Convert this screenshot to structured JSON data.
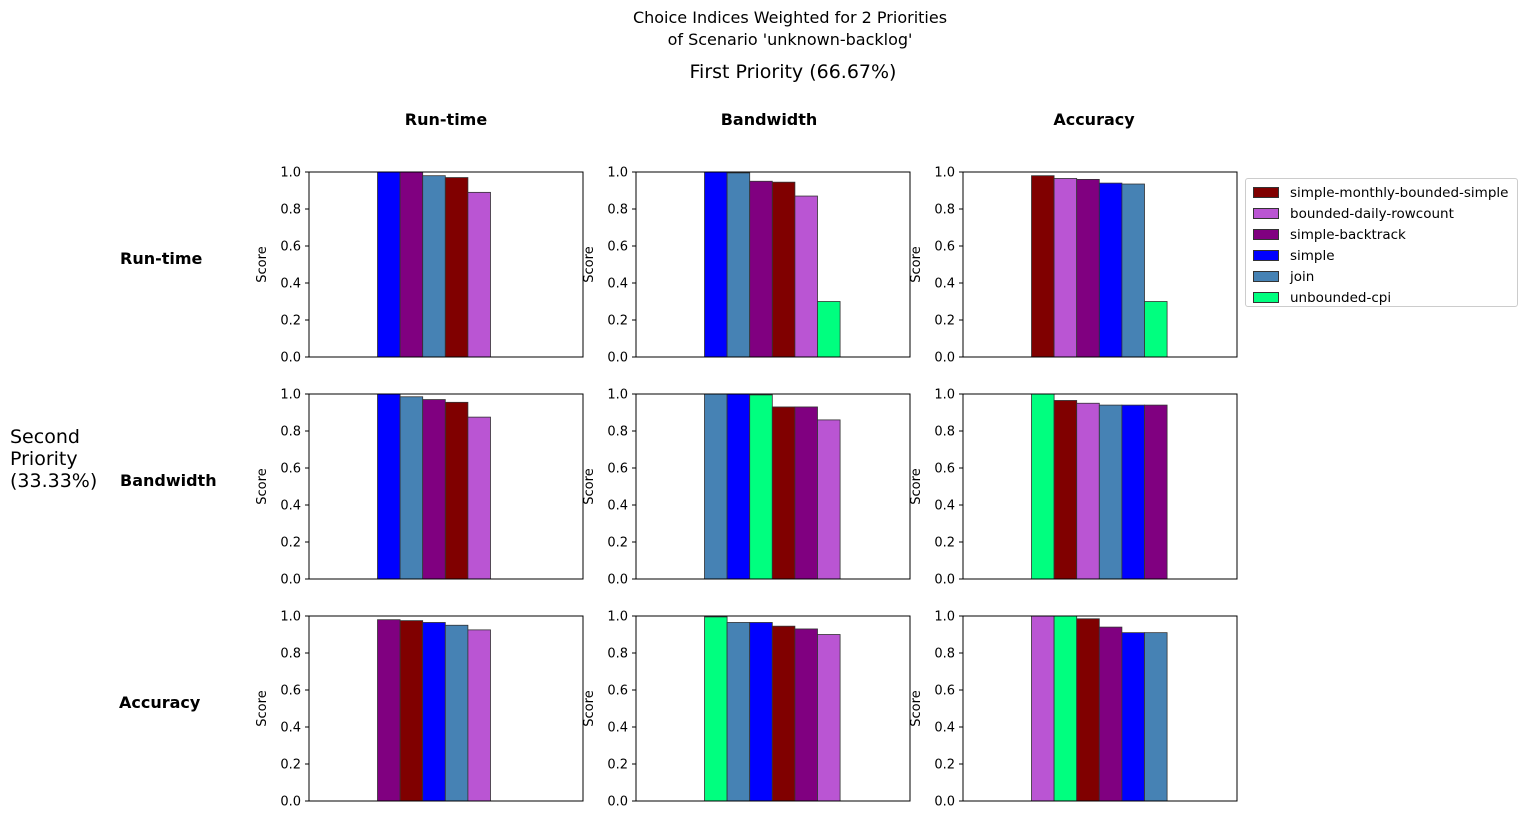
{
  "figure": {
    "title": "Choice Indices Weighted for 2 Priorities\nof Scenario 'unknown-backlog'",
    "first_priority_label": "First Priority (66.67%)",
    "second_priority_label": "Second\nPriority\n(33.33%)",
    "column_headers": [
      "Run-time",
      "Bandwidth",
      "Accuracy"
    ],
    "row_headers": [
      "Run-time",
      "Bandwidth",
      "Accuracy"
    ]
  },
  "colors": {
    "simple-monthly-bounded-simple": "#800000",
    "bounded-daily-rowcount": "#ba55d3",
    "simple-backtrack": "#800080",
    "simple": "#0000ff",
    "join": "#4682b4",
    "unbounded-cpi": "#00ff7f"
  },
  "legend": [
    "simple-monthly-bounded-simple",
    "bounded-daily-rowcount",
    "simple-backtrack",
    "simple",
    "join",
    "unbounded-cpi"
  ],
  "chart_data": [
    {
      "type": "bar",
      "row": "Run-time",
      "column": "Run-time",
      "ylabel": "Score",
      "ylim": [
        0,
        1
      ],
      "series": [
        {
          "name": "simple",
          "value": 1.0
        },
        {
          "name": "simple-backtrack",
          "value": 1.0
        },
        {
          "name": "join",
          "value": 0.98
        },
        {
          "name": "simple-monthly-bounded-simple",
          "value": 0.97
        },
        {
          "name": "bounded-daily-rowcount",
          "value": 0.89
        },
        {
          "name": "unbounded-cpi",
          "value": 0.0
        }
      ]
    },
    {
      "type": "bar",
      "row": "Run-time",
      "column": "Bandwidth",
      "ylabel": "Score",
      "ylim": [
        0,
        1
      ],
      "series": [
        {
          "name": "simple",
          "value": 1.0
        },
        {
          "name": "join",
          "value": 0.995
        },
        {
          "name": "simple-backtrack",
          "value": 0.95
        },
        {
          "name": "simple-monthly-bounded-simple",
          "value": 0.945
        },
        {
          "name": "bounded-daily-rowcount",
          "value": 0.87
        },
        {
          "name": "unbounded-cpi",
          "value": 0.3
        }
      ]
    },
    {
      "type": "bar",
      "row": "Run-time",
      "column": "Accuracy",
      "ylabel": "Score",
      "ylim": [
        0,
        1
      ],
      "series": [
        {
          "name": "simple-monthly-bounded-simple",
          "value": 0.98
        },
        {
          "name": "bounded-daily-rowcount",
          "value": 0.965
        },
        {
          "name": "simple-backtrack",
          "value": 0.96
        },
        {
          "name": "simple",
          "value": 0.94
        },
        {
          "name": "join",
          "value": 0.935
        },
        {
          "name": "unbounded-cpi",
          "value": 0.3
        }
      ]
    },
    {
      "type": "bar",
      "row": "Bandwidth",
      "column": "Run-time",
      "ylabel": "Score",
      "ylim": [
        0,
        1
      ],
      "series": [
        {
          "name": "simple",
          "value": 1.0
        },
        {
          "name": "join",
          "value": 0.985
        },
        {
          "name": "simple-backtrack",
          "value": 0.97
        },
        {
          "name": "simple-monthly-bounded-simple",
          "value": 0.955
        },
        {
          "name": "bounded-daily-rowcount",
          "value": 0.875
        },
        {
          "name": "unbounded-cpi",
          "value": 0.0
        }
      ]
    },
    {
      "type": "bar",
      "row": "Bandwidth",
      "column": "Bandwidth",
      "ylabel": "Score",
      "ylim": [
        0,
        1
      ],
      "series": [
        {
          "name": "join",
          "value": 1.0
        },
        {
          "name": "simple",
          "value": 1.0
        },
        {
          "name": "unbounded-cpi",
          "value": 0.995
        },
        {
          "name": "simple-monthly-bounded-simple",
          "value": 0.93
        },
        {
          "name": "simple-backtrack",
          "value": 0.93
        },
        {
          "name": "bounded-daily-rowcount",
          "value": 0.86
        }
      ]
    },
    {
      "type": "bar",
      "row": "Bandwidth",
      "column": "Accuracy",
      "ylabel": "Score",
      "ylim": [
        0,
        1
      ],
      "series": [
        {
          "name": "unbounded-cpi",
          "value": 1.0
        },
        {
          "name": "simple-monthly-bounded-simple",
          "value": 0.965
        },
        {
          "name": "bounded-daily-rowcount",
          "value": 0.95
        },
        {
          "name": "join",
          "value": 0.94
        },
        {
          "name": "simple",
          "value": 0.94
        },
        {
          "name": "simple-backtrack",
          "value": 0.94
        }
      ]
    },
    {
      "type": "bar",
      "row": "Accuracy",
      "column": "Run-time",
      "ylabel": "Score",
      "ylim": [
        0,
        1
      ],
      "series": [
        {
          "name": "simple-backtrack",
          "value": 0.98
        },
        {
          "name": "simple-monthly-bounded-simple",
          "value": 0.975
        },
        {
          "name": "simple",
          "value": 0.965
        },
        {
          "name": "join",
          "value": 0.95
        },
        {
          "name": "bounded-daily-rowcount",
          "value": 0.925
        },
        {
          "name": "unbounded-cpi",
          "value": 0.0
        }
      ]
    },
    {
      "type": "bar",
      "row": "Accuracy",
      "column": "Bandwidth",
      "ylabel": "Score",
      "ylim": [
        0,
        1
      ],
      "series": [
        {
          "name": "unbounded-cpi",
          "value": 0.995
        },
        {
          "name": "join",
          "value": 0.965
        },
        {
          "name": "simple",
          "value": 0.965
        },
        {
          "name": "simple-monthly-bounded-simple",
          "value": 0.945
        },
        {
          "name": "simple-backtrack",
          "value": 0.93
        },
        {
          "name": "bounded-daily-rowcount",
          "value": 0.9
        }
      ]
    },
    {
      "type": "bar",
      "row": "Accuracy",
      "column": "Accuracy",
      "ylabel": "Score",
      "ylim": [
        0,
        1
      ],
      "series": [
        {
          "name": "bounded-daily-rowcount",
          "value": 1.0
        },
        {
          "name": "unbounded-cpi",
          "value": 1.0
        },
        {
          "name": "simple-monthly-bounded-simple",
          "value": 0.985
        },
        {
          "name": "simple-backtrack",
          "value": 0.94
        },
        {
          "name": "simple",
          "value": 0.91
        },
        {
          "name": "join",
          "value": 0.91
        }
      ]
    }
  ]
}
